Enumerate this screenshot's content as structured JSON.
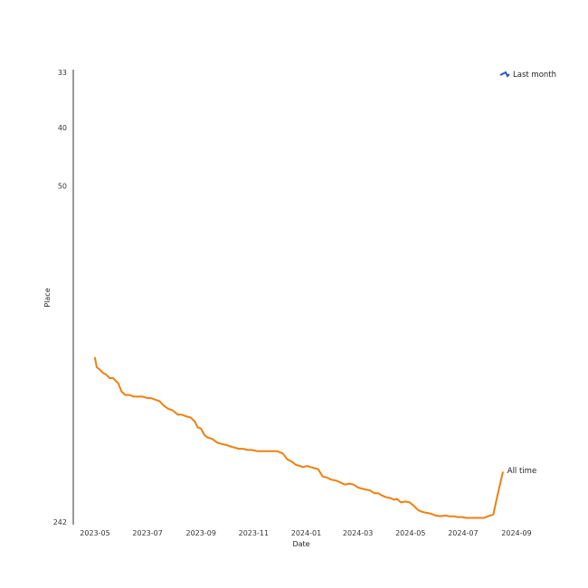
{
  "chart_data": {
    "type": "line",
    "xlabel": "Date",
    "ylabel": "Place",
    "y_inverted": true,
    "ylim": [
      33,
      242
    ],
    "y_ticks": [
      33,
      40,
      50,
      242
    ],
    "x_ticks": [
      "2023-05",
      "2023-07",
      "2023-09",
      "2023-11",
      "2024-01",
      "2024-03",
      "2024-05",
      "2024-07",
      "2024-09"
    ],
    "legend_position": "top-right",
    "legend": [
      {
        "name": "Last month",
        "color": "#2f55d4"
      }
    ],
    "series": [
      {
        "name": "All time",
        "color": "#f07f10",
        "points": [
          [
            "2023-05-01",
            107
          ],
          [
            "2023-05-03",
            112
          ],
          [
            "2023-05-06",
            113
          ],
          [
            "2023-05-10",
            115
          ],
          [
            "2023-05-14",
            116
          ],
          [
            "2023-05-18",
            118
          ],
          [
            "2023-05-22",
            118
          ],
          [
            "2023-05-28",
            121
          ],
          [
            "2023-06-01",
            126
          ],
          [
            "2023-06-05",
            128
          ],
          [
            "2023-06-10",
            128
          ],
          [
            "2023-06-15",
            129
          ],
          [
            "2023-06-20",
            129
          ],
          [
            "2023-06-25",
            129
          ],
          [
            "2023-07-01",
            130
          ],
          [
            "2023-07-05",
            130
          ],
          [
            "2023-07-10",
            131
          ],
          [
            "2023-07-15",
            132
          ],
          [
            "2023-07-20",
            135
          ],
          [
            "2023-07-25",
            137
          ],
          [
            "2023-07-30",
            138
          ],
          [
            "2023-08-05",
            141
          ],
          [
            "2023-08-10",
            141
          ],
          [
            "2023-08-14",
            142
          ],
          [
            "2023-08-20",
            143
          ],
          [
            "2023-08-25",
            146
          ],
          [
            "2023-08-28",
            150
          ],
          [
            "2023-09-01",
            151
          ],
          [
            "2023-09-05",
            156
          ],
          [
            "2023-09-09",
            158
          ],
          [
            "2023-09-14",
            159
          ],
          [
            "2023-09-20",
            162
          ],
          [
            "2023-09-25",
            163
          ],
          [
            "2023-10-01",
            164
          ],
          [
            "2023-10-05",
            165
          ],
          [
            "2023-10-10",
            166
          ],
          [
            "2023-10-15",
            167
          ],
          [
            "2023-10-20",
            167
          ],
          [
            "2023-10-25",
            168
          ],
          [
            "2023-10-30",
            168
          ],
          [
            "2023-11-05",
            169
          ],
          [
            "2023-11-10",
            169
          ],
          [
            "2023-11-15",
            169
          ],
          [
            "2023-11-22",
            169
          ],
          [
            "2023-11-28",
            169
          ],
          [
            "2023-12-05",
            171
          ],
          [
            "2023-12-10",
            176
          ],
          [
            "2023-12-15",
            178
          ],
          [
            "2023-12-20",
            181
          ],
          [
            "2023-12-25",
            182
          ],
          [
            "2023-12-28",
            183
          ],
          [
            "2024-01-02",
            182
          ],
          [
            "2024-01-06",
            183
          ],
          [
            "2024-01-10",
            184
          ],
          [
            "2024-01-15",
            185
          ],
          [
            "2024-01-20",
            192
          ],
          [
            "2024-01-25",
            193
          ],
          [
            "2024-01-30",
            195
          ],
          [
            "2024-02-05",
            196
          ],
          [
            "2024-02-10",
            198
          ],
          [
            "2024-02-15",
            200
          ],
          [
            "2024-02-20",
            199
          ],
          [
            "2024-02-25",
            200
          ],
          [
            "2024-03-01",
            203
          ],
          [
            "2024-03-05",
            204
          ],
          [
            "2024-03-10",
            205
          ],
          [
            "2024-03-15",
            206
          ],
          [
            "2024-03-20",
            209
          ],
          [
            "2024-03-25",
            209
          ],
          [
            "2024-03-28",
            211
          ],
          [
            "2024-04-02",
            213
          ],
          [
            "2024-04-07",
            214
          ],
          [
            "2024-04-12",
            216
          ],
          [
            "2024-04-15",
            215
          ],
          [
            "2024-04-20",
            219
          ],
          [
            "2024-04-25",
            218
          ],
          [
            "2024-04-30",
            219
          ],
          [
            "2024-05-05",
            223
          ],
          [
            "2024-05-10",
            228
          ],
          [
            "2024-05-15",
            230
          ],
          [
            "2024-05-20",
            231
          ],
          [
            "2024-05-25",
            232
          ],
          [
            "2024-05-30",
            234
          ],
          [
            "2024-06-05",
            235
          ],
          [
            "2024-06-10",
            234
          ],
          [
            "2024-06-15",
            235
          ],
          [
            "2024-06-20",
            235
          ],
          [
            "2024-06-25",
            236
          ],
          [
            "2024-06-30",
            236
          ],
          [
            "2024-07-05",
            237
          ],
          [
            "2024-07-10",
            237
          ],
          [
            "2024-07-15",
            237
          ],
          [
            "2024-07-20",
            237
          ],
          [
            "2024-07-25",
            237
          ],
          [
            "2024-07-30",
            235
          ],
          [
            "2024-08-05",
            233
          ],
          [
            "2024-08-10",
            211
          ],
          [
            "2024-08-16",
            188
          ]
        ]
      }
    ]
  }
}
